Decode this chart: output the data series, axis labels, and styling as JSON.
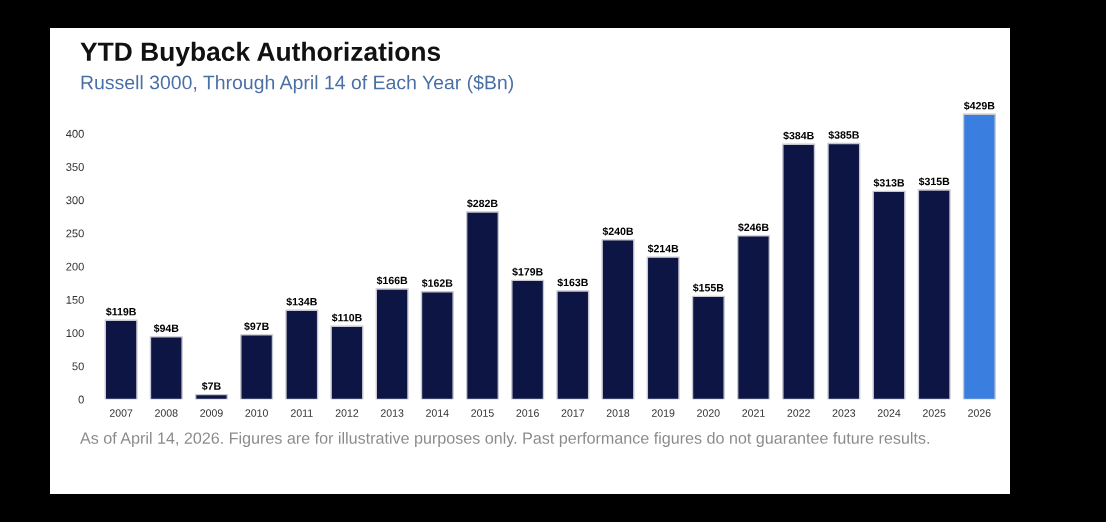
{
  "chart_data": {
    "type": "bar",
    "title": "YTD Buyback Authorizations",
    "subtitle": "Russell 3000, Through April 14 of Each Year ($Bn)",
    "categories": [
      "2007",
      "2008",
      "2009",
      "2010",
      "2011",
      "2012",
      "2013",
      "2014",
      "2015",
      "2016",
      "2017",
      "2018",
      "2019",
      "2020",
      "2021",
      "2022",
      "2023",
      "2024",
      "2025",
      "2026"
    ],
    "values": [
      119,
      94,
      7,
      97,
      134,
      110,
      166,
      162,
      282,
      179,
      163,
      240,
      214,
      155,
      246,
      384,
      385,
      313,
      315,
      429
    ],
    "value_labels": [
      "$119B",
      "$94B",
      "$7B",
      "$97B",
      "$134B",
      "$110B",
      "$166B",
      "$162B",
      "$282B",
      "$179B",
      "$163B",
      "$240B",
      "$214B",
      "$155B",
      "$246B",
      "$384B",
      "$385B",
      "$313B",
      "$315B",
      "$429B"
    ],
    "colors": [
      "#0d1545",
      "#0d1545",
      "#0d1545",
      "#0d1545",
      "#0d1545",
      "#0d1545",
      "#0d1545",
      "#0d1545",
      "#0d1545",
      "#0d1545",
      "#0d1545",
      "#0d1545",
      "#0d1545",
      "#0d1545",
      "#0d1545",
      "#0d1545",
      "#0d1545",
      "#0d1545",
      "#0d1545",
      "#3a7fe0"
    ],
    "ylim": [
      0,
      440
    ],
    "yticks": [
      0,
      50,
      100,
      150,
      200,
      250,
      300,
      350,
      400
    ],
    "grid": false,
    "legend": false,
    "annotations": [
      "As of April 14, 2026. Figures are for illustrative purposes only. Past performance figures do not guarantee future results."
    ]
  }
}
